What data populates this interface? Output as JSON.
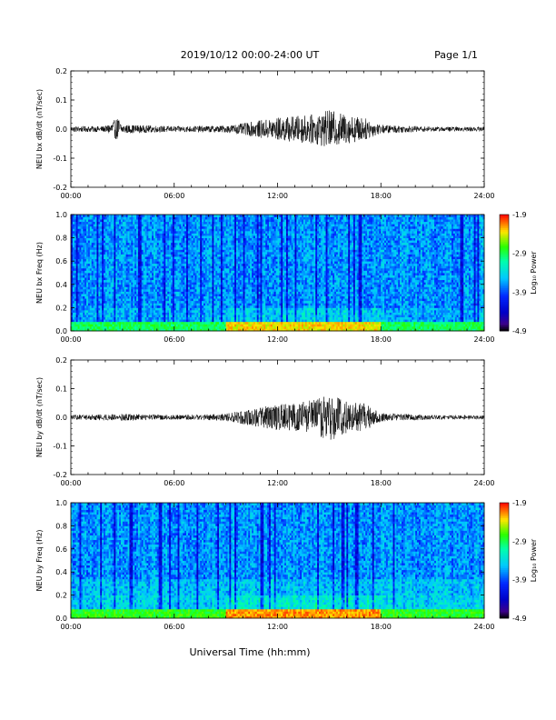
{
  "header": {
    "date_range": "2019/10/12  00:00-24:00 UT",
    "page": "Page 1/1"
  },
  "colorbar_label": "Log₁₀ Power",
  "chart_data": [
    {
      "type": "line",
      "ylabel": "NEU bx dB/dt (nT/sec)",
      "ylim": [
        -0.2,
        0.2
      ],
      "yticks": [
        "-0.2",
        "-0.1",
        "0.0",
        "0.1",
        "0.2"
      ],
      "xlim": [
        "00:00",
        "24:00"
      ],
      "xticks": [
        "00:00",
        "06:00",
        "12:00",
        "18:00",
        "24:00"
      ],
      "series": [
        {
          "x": [
            "00:00",
            "02:00",
            "02:45",
            "03:00",
            "06:00",
            "09:00",
            "10:00",
            "11:00",
            "12:00",
            "13:00",
            "14:00",
            "15:00",
            "16:00",
            "17:00",
            "18:00",
            "21:00",
            "24:00"
          ],
          "amplitude": [
            0.01,
            0.01,
            0.04,
            0.015,
            0.01,
            0.012,
            0.02,
            0.03,
            0.04,
            0.045,
            0.05,
            0.065,
            0.05,
            0.04,
            0.015,
            0.008,
            0.008
          ]
        }
      ]
    },
    {
      "type": "heatmap",
      "ylabel": "NEU bx Freq (Hz)",
      "ylim": [
        0.0,
        1.0
      ],
      "yticks": [
        "0.0",
        "0.2",
        "0.4",
        "0.6",
        "0.8",
        "1.0"
      ],
      "xticks": [
        "00:00",
        "06:00",
        "12:00",
        "18:00",
        "24:00"
      ],
      "colorbar_ticks": [
        "-1.9",
        "-2.9",
        "-3.9",
        "-4.9"
      ],
      "color_range": [
        -4.9,
        -1.9
      ]
    },
    {
      "type": "line",
      "ylabel": "NEU by dB/dt (nT/sec)",
      "ylim": [
        -0.2,
        0.2
      ],
      "yticks": [
        "-0.2",
        "-0.1",
        "0.0",
        "0.1",
        "0.2"
      ],
      "xlim": [
        "00:00",
        "24:00"
      ],
      "xticks": [
        "00:00",
        "06:00",
        "12:00",
        "18:00",
        "24:00"
      ],
      "series": [
        {
          "x": [
            "00:00",
            "03:00",
            "06:00",
            "09:00",
            "10:00",
            "11:00",
            "12:00",
            "13:00",
            "14:00",
            "15:00",
            "16:00",
            "17:00",
            "18:00",
            "21:00",
            "24:00"
          ],
          "amplitude": [
            0.008,
            0.012,
            0.008,
            0.012,
            0.025,
            0.035,
            0.045,
            0.05,
            0.06,
            0.085,
            0.055,
            0.05,
            0.015,
            0.008,
            0.008
          ]
        }
      ]
    },
    {
      "type": "heatmap",
      "ylabel": "NEU by Freq (Hz)",
      "ylim": [
        0.0,
        1.0
      ],
      "yticks": [
        "0.0",
        "0.2",
        "0.4",
        "0.6",
        "0.8",
        "1.0"
      ],
      "xticks": [
        "00:00",
        "06:00",
        "12:00",
        "18:00",
        "24:00"
      ],
      "colorbar_ticks": [
        "-1.9",
        "-2.9",
        "-3.9",
        "-4.9"
      ],
      "color_range": [
        -4.9,
        -1.9
      ]
    }
  ],
  "xlabel": "Universal Time (hh:mm)"
}
